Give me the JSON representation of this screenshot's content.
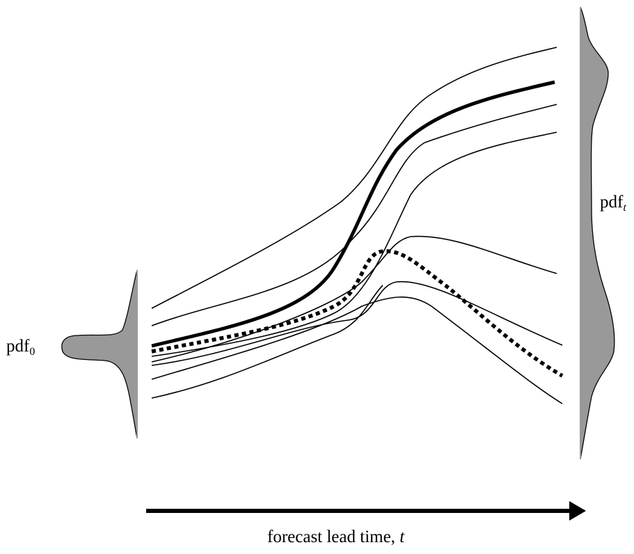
{
  "initial_pdf_label": {
    "base": "pdf",
    "subscript": "0"
  },
  "final_pdf_label": {
    "base": "pdf",
    "subscript": "t"
  },
  "time_axis_label": {
    "text": "forecast lead time, ",
    "variable": "t"
  },
  "colors": {
    "pdf_fill": "#999999",
    "line": "#000000",
    "background": "#ffffff"
  },
  "legend_styles": {
    "ensemble_member": "thin solid line",
    "ensemble_mean": "thick solid line",
    "truth": "thick dotted line"
  }
}
